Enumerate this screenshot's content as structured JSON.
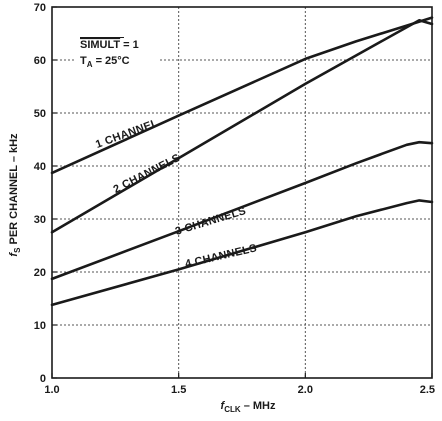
{
  "chart_data": {
    "type": "line",
    "title": "",
    "xlabel": "fCLK – MHz",
    "ylabel": "fS PER CHANNEL – kHz",
    "xlabel_parts": {
      "sym": "f",
      "sub": "CLK",
      "rest": " – MHz"
    },
    "ylabel_parts": {
      "sym": "f",
      "sub": "S",
      "rest": " PER CHANNEL – kHz"
    },
    "xlim": [
      1.0,
      2.5
    ],
    "ylim": [
      0,
      70
    ],
    "x_ticks": [
      1.0,
      1.5,
      2.0,
      2.5
    ],
    "x_tick_labels": [
      "1.0",
      "1.5",
      "2.0",
      "2.5"
    ],
    "y_ticks": [
      0,
      10,
      20,
      30,
      40,
      50,
      60,
      70
    ],
    "y_tick_labels": [
      "0",
      "10",
      "20",
      "30",
      "40",
      "50",
      "60",
      "70"
    ],
    "grid": true,
    "annotations": {
      "simult_label": "SIMULT",
      "simult_value": " = 1",
      "ta_label": "T",
      "ta_sub": "A",
      "ta_value": " = 25°C"
    },
    "series": [
      {
        "name": "1 CHANNEL",
        "points": [
          [
            1.0,
            38.7
          ],
          [
            1.5,
            49.5
          ],
          [
            2.0,
            60.2
          ],
          [
            2.2,
            63.5
          ],
          [
            2.4,
            66.5
          ],
          [
            2.5,
            68.0
          ]
        ],
        "label_at": [
          1.3,
          45.5
        ],
        "label_angle": -20
      },
      {
        "name": "2 CHANNELS",
        "points": [
          [
            1.0,
            27.5
          ],
          [
            1.5,
            41.5
          ],
          [
            2.0,
            55.5
          ],
          [
            2.3,
            63.5
          ],
          [
            2.45,
            67.5
          ],
          [
            2.5,
            66.8
          ]
        ],
        "label_at": [
          1.38,
          38.0
        ],
        "label_angle": -27
      },
      {
        "name": "3 CHANNELS",
        "points": [
          [
            1.0,
            18.7
          ],
          [
            1.5,
            27.7
          ],
          [
            2.0,
            36.8
          ],
          [
            2.2,
            40.5
          ],
          [
            2.4,
            44.0
          ],
          [
            2.45,
            44.5
          ],
          [
            2.5,
            44.3
          ]
        ],
        "label_at": [
          1.63,
          29.0
        ],
        "label_angle": -17
      },
      {
        "name": "4 CHANNELS",
        "points": [
          [
            1.0,
            13.8
          ],
          [
            1.5,
            20.5
          ],
          [
            2.0,
            27.5
          ],
          [
            2.2,
            30.5
          ],
          [
            2.4,
            33.0
          ],
          [
            2.45,
            33.5
          ],
          [
            2.5,
            33.2
          ]
        ],
        "label_at": [
          1.67,
          22.4
        ],
        "label_angle": -13
      }
    ]
  }
}
